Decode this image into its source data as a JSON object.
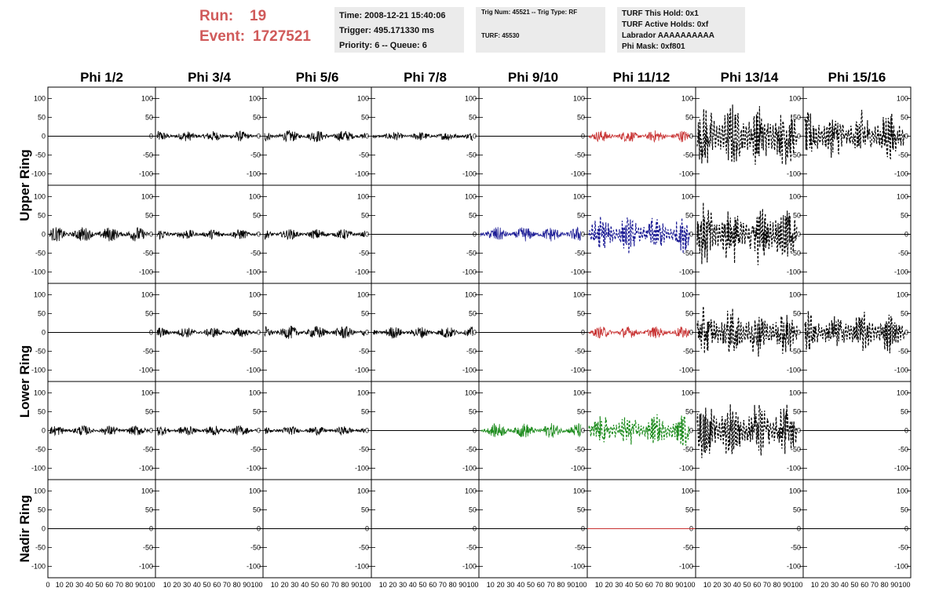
{
  "header": {
    "run_label": "Run:",
    "run_value": "19",
    "event_label": "Event:",
    "event_value": "1727521",
    "red_color": "#d05a5a",
    "info_time": [
      "Time: 2008-12-21 15:40:06",
      "Trigger: 495.171330 ms",
      "Priority: 6 -- Queue: 6"
    ],
    "info_trig": [
      "Trig Num: 45521 -- Trig Type: RF",
      "TURF: 45530"
    ],
    "info_turf": [
      "TURF This Hold: 0x1",
      "TURF Active Holds: 0xf",
      "Labrador AAAAAAAAAA",
      "Phi Mask: 0xf801"
    ]
  },
  "chart_data": {
    "type": "line",
    "columns": [
      "Phi 1/2",
      "Phi 3/4",
      "Phi 5/6",
      "Phi 7/8",
      "Phi 9/10",
      "Phi 11/12",
      "Phi 13/14",
      "Phi 15/16"
    ],
    "ring_labels": [
      "Upper Ring",
      "Lower Ring",
      "Nadir Ring"
    ],
    "ylim": [
      -130,
      130
    ],
    "y_ticks": [
      "100",
      "50",
      "0",
      "-50",
      "-100"
    ],
    "xlim": [
      0,
      100
    ],
    "x_ticks": [
      "0",
      "10",
      "20",
      "30",
      "40",
      "50",
      "60",
      "70",
      "80",
      "90",
      "100"
    ],
    "x_tick_labels_first": "0 10 20 30 40 50 60 70 80 90 100",
    "x_tick_labels_other": "10 20 30 40 50 60 70 80 90 100",
    "colors": {
      "black": "#000000",
      "red": "#c83232",
      "blue": "#1e1e96",
      "green": "#1e8c1e"
    },
    "panels": [
      [
        {
          "amp": 0,
          "color": "black",
          "dashed": false
        },
        {
          "amp": 14,
          "color": "black",
          "dashed": false
        },
        {
          "amp": 16,
          "color": "black",
          "dashed": false
        },
        {
          "amp": 12,
          "color": "black",
          "dashed": false
        },
        {
          "amp": 0,
          "color": "black",
          "dashed": false
        },
        {
          "amp": 16,
          "color": "red",
          "dashed": false
        },
        {
          "amp": 70,
          "color": "black",
          "dashed": true
        },
        {
          "amp": 55,
          "color": "black",
          "dashed": true
        }
      ],
      [
        {
          "amp": 20,
          "color": "black",
          "dashed": false
        },
        {
          "amp": 14,
          "color": "black",
          "dashed": false
        },
        {
          "amp": 14,
          "color": "black",
          "dashed": false
        },
        {
          "amp": 0,
          "color": "black",
          "dashed": false
        },
        {
          "amp": 20,
          "color": "blue",
          "dashed": false
        },
        {
          "amp": 40,
          "color": "blue",
          "dashed": true
        },
        {
          "amp": 70,
          "color": "black",
          "dashed": true
        },
        {
          "amp": 0,
          "color": "black",
          "dashed": false
        }
      ],
      [
        {
          "amp": 0,
          "color": "black",
          "dashed": false
        },
        {
          "amp": 14,
          "color": "black",
          "dashed": false
        },
        {
          "amp": 18,
          "color": "black",
          "dashed": false
        },
        {
          "amp": 16,
          "color": "black",
          "dashed": false
        },
        {
          "amp": 0,
          "color": "black",
          "dashed": false
        },
        {
          "amp": 16,
          "color": "red",
          "dashed": false
        },
        {
          "amp": 55,
          "color": "black",
          "dashed": true
        },
        {
          "amp": 45,
          "color": "black",
          "dashed": true
        }
      ],
      [
        {
          "amp": 14,
          "color": "black",
          "dashed": false
        },
        {
          "amp": 14,
          "color": "black",
          "dashed": false
        },
        {
          "amp": 12,
          "color": "black",
          "dashed": false
        },
        {
          "amp": 0,
          "color": "black",
          "dashed": false
        },
        {
          "amp": 20,
          "color": "green",
          "dashed": false
        },
        {
          "amp": 35,
          "color": "green",
          "dashed": true
        },
        {
          "amp": 65,
          "color": "black",
          "dashed": true
        },
        {
          "amp": 0,
          "color": "black",
          "dashed": false
        }
      ],
      [
        {
          "amp": 0,
          "color": "black",
          "dashed": false
        },
        {
          "amp": 0,
          "color": "black",
          "dashed": false
        },
        {
          "amp": 0,
          "color": "black",
          "dashed": false
        },
        {
          "amp": 0,
          "color": "black",
          "dashed": false
        },
        {
          "amp": 0,
          "color": "black",
          "dashed": false
        },
        {
          "amp": 0,
          "color": "red",
          "dashed": false
        },
        {
          "amp": 0,
          "color": "black",
          "dashed": false
        },
        {
          "amp": 0,
          "color": "black",
          "dashed": false
        }
      ]
    ]
  }
}
